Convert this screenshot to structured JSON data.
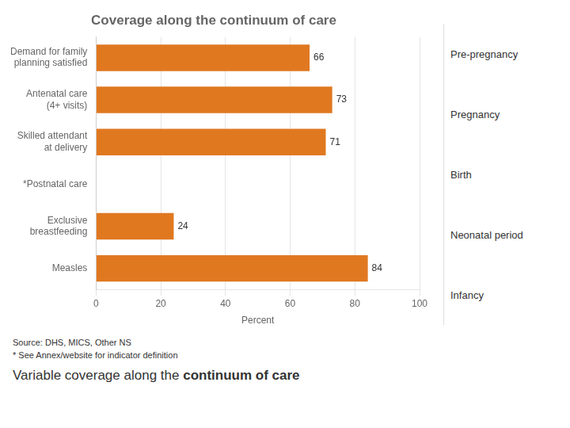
{
  "chart_data": {
    "type": "bar",
    "orientation": "horizontal",
    "title": "Coverage along the continuum of care",
    "categories": [
      "Demand for family\nplanning satisfied",
      "Antenatal care\n(4+ visits)",
      "Skilled attendant\nat delivery",
      "*Postnatal care",
      "Exclusive\nbreastfeeding",
      "Measles"
    ],
    "values": [
      66,
      73,
      71,
      null,
      24,
      84
    ],
    "color": "#E07820",
    "xlabel": "Percent",
    "xlim": [
      0,
      100
    ],
    "xticks": [
      0,
      20,
      40,
      60,
      80,
      100
    ],
    "grid": true,
    "data_labels": true,
    "annotations": [
      "Pre-pregnancy",
      "Pregnancy",
      "Birth",
      "Neonatal period",
      "Infancy",
      "Source: DHS, MICS, Other NS",
      "* See Annex/website for indicator definition",
      "Variable coverage along the ",
      "continuum of care"
    ]
  }
}
